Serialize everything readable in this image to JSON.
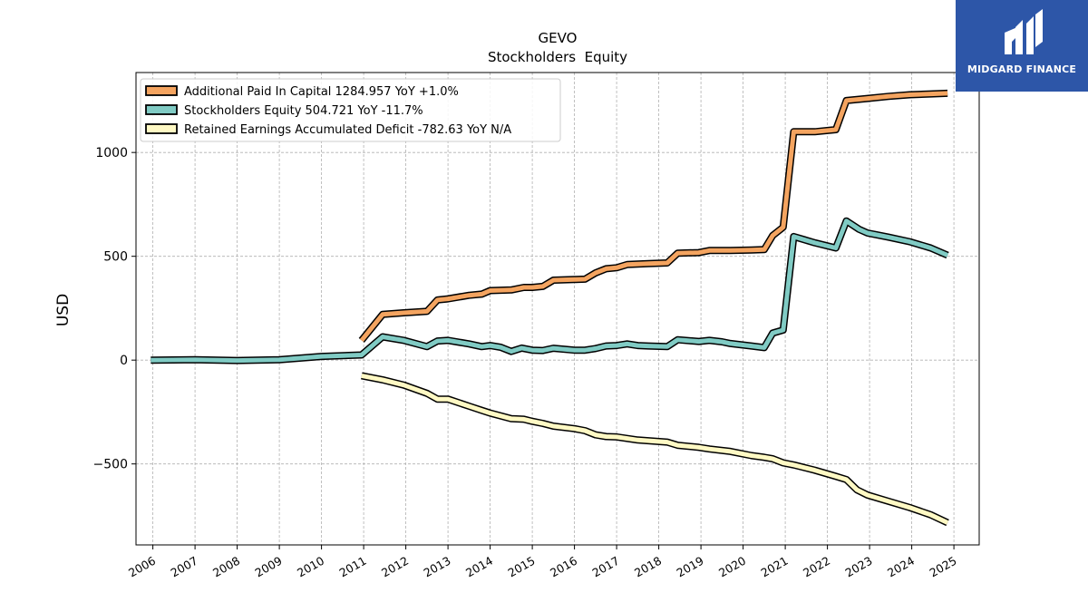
{
  "chart_data": {
    "type": "line",
    "title": "GEVO",
    "subtitle": "Stockholders  Equity",
    "xlabel": "",
    "ylabel": "USD",
    "xlim": [
      2005.6,
      2025.6
    ],
    "ylim": [
      -890,
      1385
    ],
    "grid": true,
    "legend_position": "top-left",
    "x_ticks": [
      2006,
      2007,
      2008,
      2009,
      2010,
      2011,
      2012,
      2013,
      2014,
      2015,
      2016,
      2017,
      2018,
      2019,
      2020,
      2021,
      2022,
      2023,
      2024,
      2025
    ],
    "y_ticks": [
      -500,
      0,
      500,
      1000
    ],
    "y_tick_labels": [
      "−500",
      "0",
      "500",
      "1000"
    ],
    "series": [
      {
        "name": "Additional Paid In Capital",
        "legend_label": "Additional Paid In Capital  1284.957 YoY +1.0%",
        "color": "#f4a460",
        "points": [
          [
            2010.95,
            95
          ],
          [
            2011.45,
            220
          ],
          [
            2011.95,
            228
          ],
          [
            2012.5,
            235
          ],
          [
            2012.75,
            290
          ],
          [
            2013.0,
            295
          ],
          [
            2013.5,
            312
          ],
          [
            2013.8,
            318
          ],
          [
            2014.0,
            335
          ],
          [
            2014.5,
            338
          ],
          [
            2014.8,
            350
          ],
          [
            2015.0,
            350
          ],
          [
            2015.25,
            355
          ],
          [
            2015.5,
            385
          ],
          [
            2016.0,
            388
          ],
          [
            2016.25,
            390
          ],
          [
            2016.5,
            420
          ],
          [
            2016.75,
            440
          ],
          [
            2017.0,
            445
          ],
          [
            2017.25,
            460
          ],
          [
            2017.75,
            465
          ],
          [
            2018.2,
            468
          ],
          [
            2018.45,
            515
          ],
          [
            2018.95,
            518
          ],
          [
            2019.2,
            528
          ],
          [
            2019.7,
            528
          ],
          [
            2020.2,
            530
          ],
          [
            2020.5,
            532
          ],
          [
            2020.7,
            600
          ],
          [
            2020.95,
            640
          ],
          [
            2021.2,
            1100
          ],
          [
            2021.7,
            1100
          ],
          [
            2022.2,
            1110
          ],
          [
            2022.45,
            1250
          ],
          [
            2022.95,
            1260
          ],
          [
            2023.45,
            1270
          ],
          [
            2023.95,
            1278
          ],
          [
            2024.45,
            1282
          ],
          [
            2024.85,
            1285
          ]
        ]
      },
      {
        "name": "Stockholders Equity",
        "legend_label": "Stockholders Equity  504.721 YoY -11.7%",
        "color": "#80cbc4",
        "points": [
          [
            2005.95,
            0
          ],
          [
            2007.0,
            2
          ],
          [
            2008.0,
            -2
          ],
          [
            2009.0,
            2
          ],
          [
            2010.0,
            18
          ],
          [
            2010.95,
            25
          ],
          [
            2011.45,
            112
          ],
          [
            2011.95,
            95
          ],
          [
            2012.5,
            65
          ],
          [
            2012.75,
            92
          ],
          [
            2013.0,
            95
          ],
          [
            2013.5,
            78
          ],
          [
            2013.8,
            65
          ],
          [
            2014.0,
            70
          ],
          [
            2014.25,
            62
          ],
          [
            2014.5,
            42
          ],
          [
            2014.75,
            58
          ],
          [
            2015.0,
            48
          ],
          [
            2015.25,
            46
          ],
          [
            2015.5,
            57
          ],
          [
            2016.0,
            48
          ],
          [
            2016.25,
            48
          ],
          [
            2016.5,
            56
          ],
          [
            2016.75,
            68
          ],
          [
            2017.0,
            70
          ],
          [
            2017.25,
            78
          ],
          [
            2017.5,
            70
          ],
          [
            2017.75,
            68
          ],
          [
            2018.2,
            65
          ],
          [
            2018.45,
            98
          ],
          [
            2018.95,
            90
          ],
          [
            2019.2,
            95
          ],
          [
            2019.5,
            88
          ],
          [
            2019.7,
            80
          ],
          [
            2020.2,
            68
          ],
          [
            2020.5,
            60
          ],
          [
            2020.7,
            130
          ],
          [
            2020.95,
            145
          ],
          [
            2021.2,
            595
          ],
          [
            2021.7,
            565
          ],
          [
            2022.2,
            540
          ],
          [
            2022.45,
            670
          ],
          [
            2022.75,
            630
          ],
          [
            2022.95,
            612
          ],
          [
            2023.45,
            592
          ],
          [
            2023.95,
            570
          ],
          [
            2024.45,
            540
          ],
          [
            2024.85,
            505
          ]
        ]
      },
      {
        "name": "Retained Earnings Accumulated Deficit",
        "legend_label": "Retained Earnings Accumulated Deficit  -782.63 YoY N/A",
        "color": "#fff9c4",
        "points": [
          [
            2010.95,
            -75
          ],
          [
            2011.45,
            -95
          ],
          [
            2011.95,
            -120
          ],
          [
            2012.5,
            -160
          ],
          [
            2012.75,
            -188
          ],
          [
            2013.0,
            -188
          ],
          [
            2013.5,
            -222
          ],
          [
            2013.8,
            -242
          ],
          [
            2014.0,
            -255
          ],
          [
            2014.5,
            -282
          ],
          [
            2014.8,
            -285
          ],
          [
            2015.0,
            -295
          ],
          [
            2015.25,
            -305
          ],
          [
            2015.5,
            -318
          ],
          [
            2016.0,
            -330
          ],
          [
            2016.25,
            -340
          ],
          [
            2016.5,
            -360
          ],
          [
            2016.75,
            -368
          ],
          [
            2017.0,
            -370
          ],
          [
            2017.5,
            -385
          ],
          [
            2018.2,
            -395
          ],
          [
            2018.45,
            -410
          ],
          [
            2018.95,
            -420
          ],
          [
            2019.2,
            -428
          ],
          [
            2019.7,
            -440
          ],
          [
            2020.2,
            -460
          ],
          [
            2020.5,
            -468
          ],
          [
            2020.7,
            -475
          ],
          [
            2020.95,
            -495
          ],
          [
            2021.2,
            -505
          ],
          [
            2021.7,
            -530
          ],
          [
            2022.2,
            -560
          ],
          [
            2022.45,
            -575
          ],
          [
            2022.7,
            -625
          ],
          [
            2022.95,
            -650
          ],
          [
            2023.45,
            -680
          ],
          [
            2023.95,
            -710
          ],
          [
            2024.45,
            -745
          ],
          [
            2024.85,
            -783
          ]
        ]
      }
    ]
  },
  "logo": {
    "text": "MIDGARD FINANCE",
    "background": "#2d56a8",
    "color": "#ffffff"
  }
}
